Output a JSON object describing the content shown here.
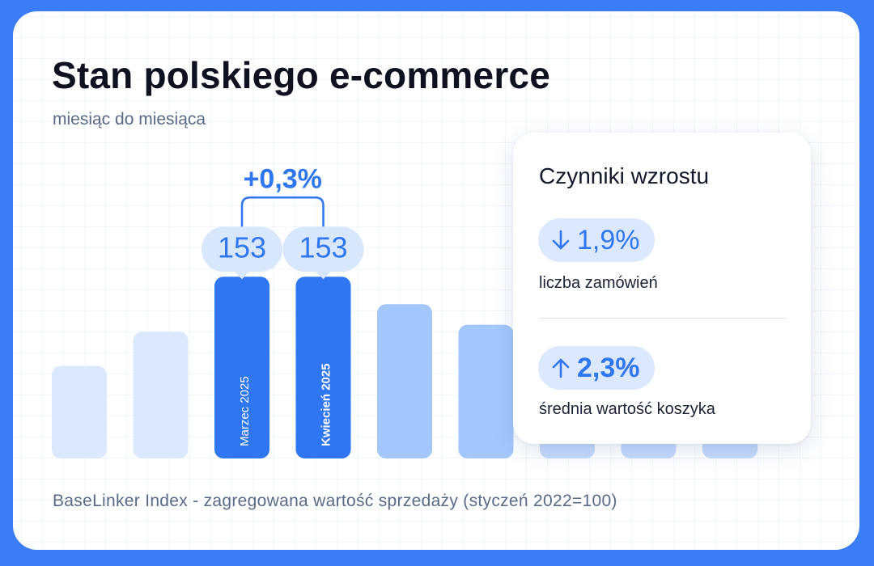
{
  "title": "Stan polskiego e-commerce",
  "subtitle": "miesiąc do miesiąca",
  "footer": "BaseLinker Index - zagregowana wartość sprzedaży (styczeń 2022=100)",
  "colors": {
    "background": "#3b7df5",
    "highlight": "#2f76f3",
    "bar_pale": "#dce8fd",
    "bar_mid": "#a4c7fb",
    "pill_bg": "#dbe8fd"
  },
  "chart_data": {
    "type": "bar",
    "title": "Stan polskiego e-commerce",
    "subtitle": "miesiąc do miesiąca",
    "ylabel": "BaseLinker Index - zagregowana wartość sprzedaży (styczeń 2022=100)",
    "categories": [
      "",
      "",
      "Marzec 2025",
      "Kwiecień 2025",
      "",
      "",
      "",
      "",
      ""
    ],
    "values": [
      127,
      137,
      153,
      153,
      145,
      139,
      null,
      null,
      null
    ],
    "value_labels": [
      "",
      "",
      "153",
      "153",
      "",
      "",
      "",
      "",
      ""
    ],
    "highlighted": [
      2,
      3
    ],
    "change_annotation": "+0,3%",
    "ylim": [
      100,
      160
    ],
    "grid": true,
    "legend": "none"
  },
  "panel": {
    "title": "Czynniki wzrostu",
    "metrics": [
      {
        "direction": "down",
        "icon": "arrow-down-icon",
        "value": "1,9%",
        "label": "liczba zamówień"
      },
      {
        "direction": "up",
        "icon": "arrow-up-icon",
        "value": "2,3%",
        "label": "średnia wartość koszyka"
      }
    ]
  }
}
